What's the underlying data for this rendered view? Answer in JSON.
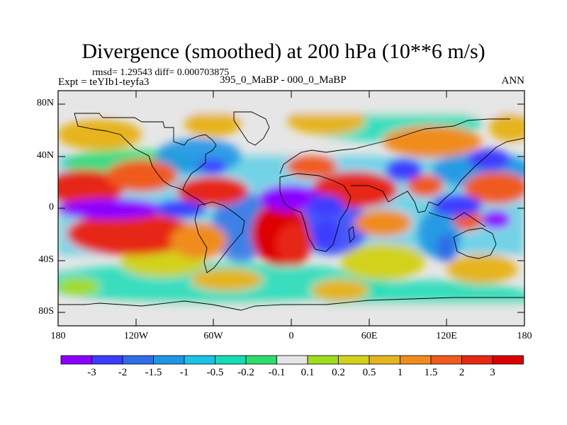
{
  "title": "Divergence (smoothed) at 200 hPa (10**6 m/s)",
  "stats_line": "rmsd= 1.29543 diff= 0.000703875",
  "experiment": "Expt = teYIb1-teyfa3",
  "comparison": "395_0_MaBP - 000_0_MaBP",
  "period": "ANN",
  "lat_labels": [
    "80N",
    "40N",
    "0",
    "40S",
    "80S"
  ],
  "lon_labels": [
    "180",
    "120W",
    "60W",
    "0",
    "60E",
    "120E",
    "180"
  ],
  "colorbar": {
    "labels": [
      "-3",
      "-2",
      "-1.5",
      "-1",
      "-0.5",
      "-0.2",
      "-0.1",
      "0.1",
      "0.2",
      "0.5",
      "1",
      "1.5",
      "2",
      "3"
    ],
    "colors": [
      "#8c00ff",
      "#3c3cff",
      "#2e6ee6",
      "#1e96e6",
      "#19c3e6",
      "#14dcb4",
      "#2ddc6e",
      "#e6e6e6",
      "#a0dc1e",
      "#d2d21e",
      "#e6b41e",
      "#f08c1e",
      "#f05a1e",
      "#e62814",
      "#dc0000"
    ]
  },
  "map": {
    "lon_range": [
      -180,
      180
    ],
    "lat_range": [
      -90,
      90
    ]
  }
}
